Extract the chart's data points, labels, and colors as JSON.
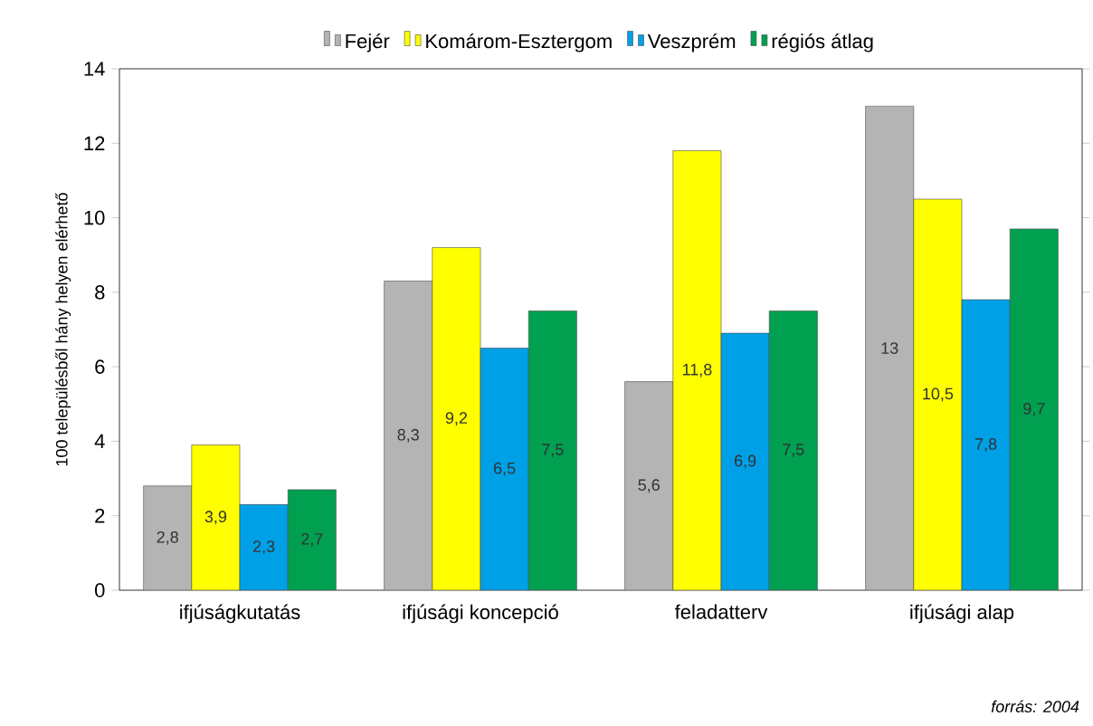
{
  "chart_data": {
    "type": "bar",
    "ylabel": "100 településből hány helyen elérhető",
    "categories": [
      "ifjúságkutatás",
      "ifjúsági koncepció",
      "feladatterv",
      "ifjúsági alap"
    ],
    "series": [
      {
        "name": "Fejér",
        "color": "#b4b4b4",
        "values": [
          2.8,
          8.3,
          5.6,
          13
        ],
        "value_labels": [
          "2,8",
          "8,3",
          "5,6",
          "13"
        ]
      },
      {
        "name": "Komárom-Esztergom",
        "color": "#ffff00",
        "values": [
          3.9,
          9.2,
          11.8,
          10.5
        ],
        "value_labels": [
          "3,9",
          "9,2",
          "11,8",
          "10,5"
        ]
      },
      {
        "name": "Veszprém",
        "color": "#00a0e6",
        "values": [
          2.3,
          6.5,
          6.9,
          7.8
        ],
        "value_labels": [
          "2,3",
          "6,5",
          "6,9",
          "7,8"
        ]
      },
      {
        "name": "régiós átlag",
        "color": "#00a050",
        "values": [
          2.7,
          7.5,
          7.5,
          9.7
        ],
        "value_labels": [
          "2,7",
          "7,5",
          "7,5",
          "9,7"
        ]
      }
    ],
    "ylim": [
      0,
      14
    ],
    "yticks": [
      0,
      2,
      4,
      6,
      8,
      10,
      12,
      14
    ],
    "legend": "top",
    "grid": false,
    "annotations": [
      "forrás: 2004"
    ]
  }
}
